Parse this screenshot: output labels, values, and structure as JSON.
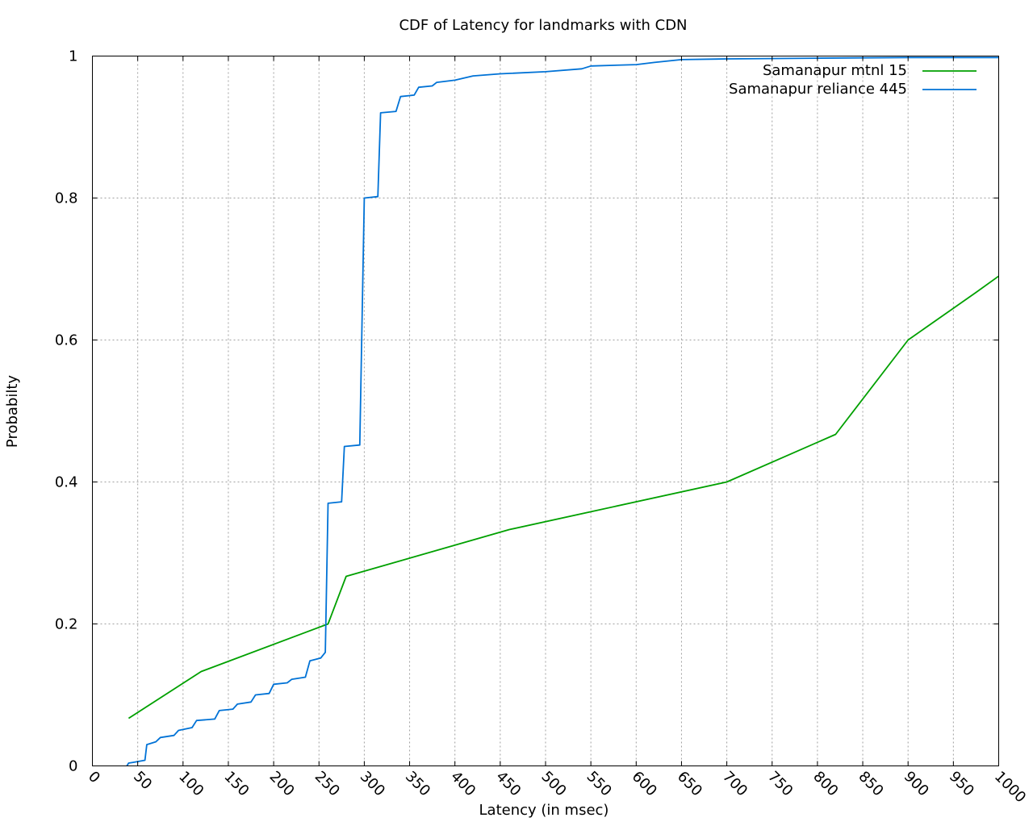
{
  "chart_data": {
    "type": "line",
    "title": "CDF of Latency for landmarks with CDN",
    "xlabel": "Latency (in msec)",
    "ylabel": "Probabilty",
    "xlim": [
      0,
      1000
    ],
    "ylim": [
      0,
      1
    ],
    "x_ticks": [
      "0",
      "50",
      "100",
      "150",
      "200",
      "250",
      "300",
      "350",
      "400",
      "450",
      "500",
      "550",
      "600",
      "650",
      "700",
      "750",
      "800",
      "850",
      "900",
      "950",
      "1000"
    ],
    "y_ticks": [
      "0",
      "0.2",
      "0.4",
      "0.6",
      "0.8",
      "1"
    ],
    "grid": true,
    "legend_position": "top-right",
    "series": [
      {
        "name": "Samanapur mtnl 15",
        "color": "#00a000",
        "points": [
          [
            40,
            0.067
          ],
          [
            120,
            0.133
          ],
          [
            260,
            0.2
          ],
          [
            280,
            0.267
          ],
          [
            460,
            0.333
          ],
          [
            700,
            0.4
          ],
          [
            820,
            0.467
          ],
          [
            900,
            0.6
          ],
          [
            975,
            0.667
          ],
          [
            1000,
            0.69
          ]
        ]
      },
      {
        "name": "Samanapur reliance 445",
        "color": "#0072d6",
        "points": [
          [
            38,
            0.0
          ],
          [
            40,
            0.004
          ],
          [
            45,
            0.005
          ],
          [
            58,
            0.008
          ],
          [
            60,
            0.03
          ],
          [
            70,
            0.034
          ],
          [
            75,
            0.04
          ],
          [
            90,
            0.043
          ],
          [
            95,
            0.05
          ],
          [
            110,
            0.054
          ],
          [
            115,
            0.064
          ],
          [
            135,
            0.066
          ],
          [
            140,
            0.078
          ],
          [
            155,
            0.08
          ],
          [
            160,
            0.087
          ],
          [
            175,
            0.09
          ],
          [
            180,
            0.1
          ],
          [
            195,
            0.102
          ],
          [
            200,
            0.115
          ],
          [
            215,
            0.117
          ],
          [
            220,
            0.122
          ],
          [
            235,
            0.125
          ],
          [
            240,
            0.148
          ],
          [
            252,
            0.152
          ],
          [
            257,
            0.16
          ],
          [
            260,
            0.37
          ],
          [
            275,
            0.372
          ],
          [
            278,
            0.45
          ],
          [
            295,
            0.452
          ],
          [
            300,
            0.8
          ],
          [
            315,
            0.802
          ],
          [
            318,
            0.92
          ],
          [
            335,
            0.922
          ],
          [
            340,
            0.943
          ],
          [
            355,
            0.945
          ],
          [
            360,
            0.956
          ],
          [
            375,
            0.958
          ],
          [
            380,
            0.963
          ],
          [
            400,
            0.966
          ],
          [
            420,
            0.972
          ],
          [
            450,
            0.975
          ],
          [
            500,
            0.978
          ],
          [
            540,
            0.982
          ],
          [
            550,
            0.986
          ],
          [
            600,
            0.988
          ],
          [
            620,
            0.991
          ],
          [
            650,
            0.995
          ],
          [
            700,
            0.996
          ],
          [
            800,
            0.997
          ],
          [
            900,
            0.998
          ],
          [
            1000,
            0.998
          ]
        ]
      }
    ]
  }
}
